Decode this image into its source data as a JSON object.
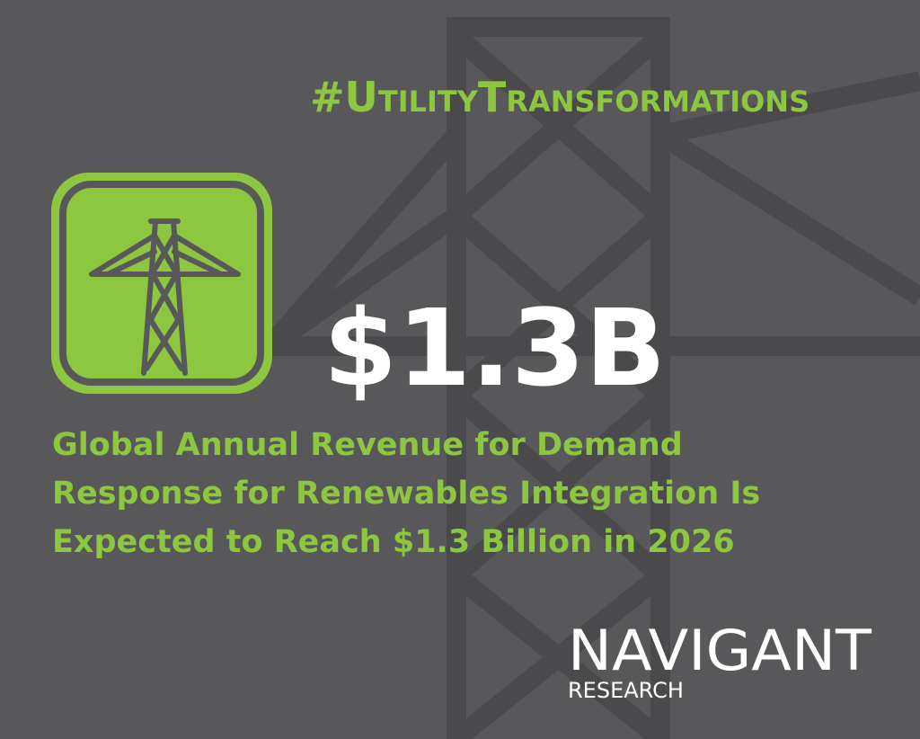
{
  "hashtag": "#UtilityTransformations",
  "headline": "$1.3B",
  "description": [
    "Global Annual Revenue for Demand",
    "Response for Renewables Integration Is",
    "Expected to Reach $1.3 Billion in 2026"
  ],
  "logo": {
    "name": "NAVIGANT",
    "subtitle": "RESEARCH"
  }
}
